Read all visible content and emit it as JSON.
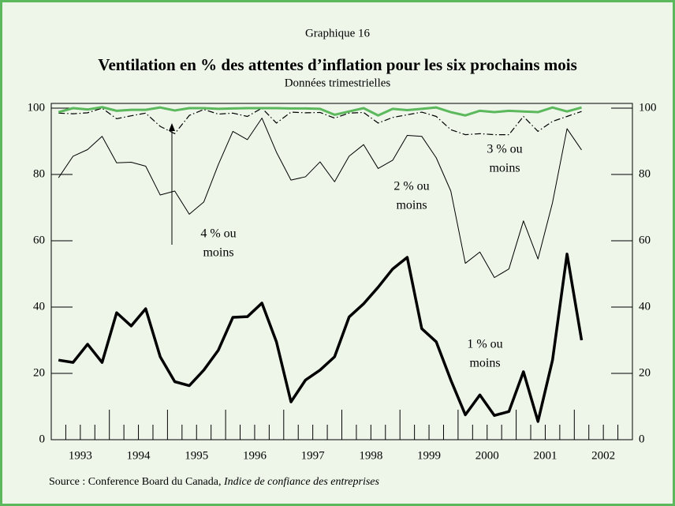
{
  "chart_data": {
    "type": "line",
    "chart_label": "Graphique 16",
    "title": "Ventilation en % des attentes d’inflation pour les six prochains mois",
    "subtitle": "Données trimestrielles",
    "x": [
      1993.125,
      1993.375,
      1993.625,
      1993.875,
      1994.125,
      1994.375,
      1994.625,
      1994.875,
      1995.125,
      1995.375,
      1995.625,
      1995.875,
      1996.125,
      1996.375,
      1996.625,
      1996.875,
      1997.125,
      1997.375,
      1997.625,
      1997.875,
      1998.125,
      1998.375,
      1998.625,
      1998.875,
      1999.125,
      1999.375,
      1999.625,
      1999.875,
      2000.125,
      2000.375,
      2000.625,
      2000.875,
      2001.125,
      2001.375,
      2001.625,
      2001.875,
      2002.125
    ],
    "series": [
      {
        "color": "#000000",
        "style": "solid",
        "values": [
          24,
          23.3,
          28.8,
          23.3,
          38.3,
          34.3,
          39.5,
          25,
          17.5,
          16.3,
          21,
          27,
          36.9,
          37.1,
          41.2,
          29.5,
          11.4,
          18,
          21,
          25,
          37,
          41,
          46,
          51.5,
          55,
          33.5,
          29.5,
          18,
          7.5,
          13.5,
          7.3,
          8.5,
          20.5,
          5.5,
          24,
          56,
          30
        ]
      },
      {
        "color": "#000000",
        "style": "solid",
        "values": [
          79,
          85.5,
          87.5,
          91.5,
          83.5,
          83.7,
          82.5,
          73.8,
          75,
          68,
          71.7,
          83,
          93,
          90.5,
          97,
          86.7,
          78.3,
          79.3,
          83.8,
          77.8,
          85.5,
          89,
          81.8,
          84.3,
          91.8,
          91.5,
          85,
          75,
          53.2,
          56.6,
          48.9,
          51.5,
          66,
          54.5,
          71.5,
          93.8,
          87.4
        ]
      },
      {
        "color": "#000000",
        "style": "dashdot",
        "values": [
          98.5,
          98.3,
          98.6,
          100,
          96.8,
          97.7,
          98.5,
          94.5,
          92.3,
          97.8,
          99.6,
          98.2,
          98.5,
          97.5,
          100,
          95.5,
          98.8,
          98.6,
          98.7,
          97,
          98.5,
          98.7,
          95.5,
          97.2,
          98,
          98.8,
          97.5,
          93.5,
          92,
          92.3,
          92,
          92,
          97.5,
          93,
          96,
          97.5,
          99
        ]
      },
      {
        "color": "#5cb85c",
        "style": "solid",
        "values": [
          98.8,
          100,
          99.6,
          100.3,
          99.2,
          99.5,
          99.5,
          100.2,
          99.3,
          100,
          100,
          99.8,
          99.9,
          100,
          100,
          100,
          99.9,
          99.9,
          99.8,
          98,
          99,
          100,
          97.8,
          99.8,
          99.4,
          99.8,
          100.2,
          98.8,
          97.8,
          99.2,
          98.8,
          99.2,
          99,
          98.8,
          100.2,
          99,
          100.2
        ]
      }
    ],
    "annotations": [
      {
        "text": [
          "1 % ou",
          "moins"
        ]
      },
      {
        "text": [
          "2 % ou",
          "moins"
        ]
      },
      {
        "text": [
          "3 % ou",
          "moins"
        ]
      },
      {
        "text": [
          "4 % ou",
          "moins"
        ]
      }
    ],
    "xlim": [
      1993,
      2003
    ],
    "xticks": [
      1993,
      1994,
      1995,
      1996,
      1997,
      1998,
      1999,
      2000,
      2001,
      2002,
      2003
    ],
    "xtick_labels": [
      {
        "value": 1993.5,
        "label": "1993"
      },
      {
        "value": 1994.5,
        "label": "1994"
      },
      {
        "value": 1995.5,
        "label": "1995"
      },
      {
        "value": 1996.5,
        "label": "1996"
      },
      {
        "value": 1997.5,
        "label": "1997"
      },
      {
        "value": 1998.5,
        "label": "1998"
      },
      {
        "value": 1999.5,
        "label": "1999"
      },
      {
        "value": 2000.5,
        "label": "2000"
      },
      {
        "value": 2001.5,
        "label": "2001"
      },
      {
        "value": 2002.5,
        "label": "2002"
      }
    ],
    "ylim": [
      0,
      100
    ],
    "yticks": [
      0,
      20,
      40,
      60,
      80,
      100
    ],
    "y2lim": [
      0,
      100
    ],
    "y2ticks": [
      0,
      20,
      40,
      60,
      80,
      100
    ],
    "source": [
      "Source : Conference Board du Canada, ",
      "Indice de confiance des entreprises"
    ]
  }
}
